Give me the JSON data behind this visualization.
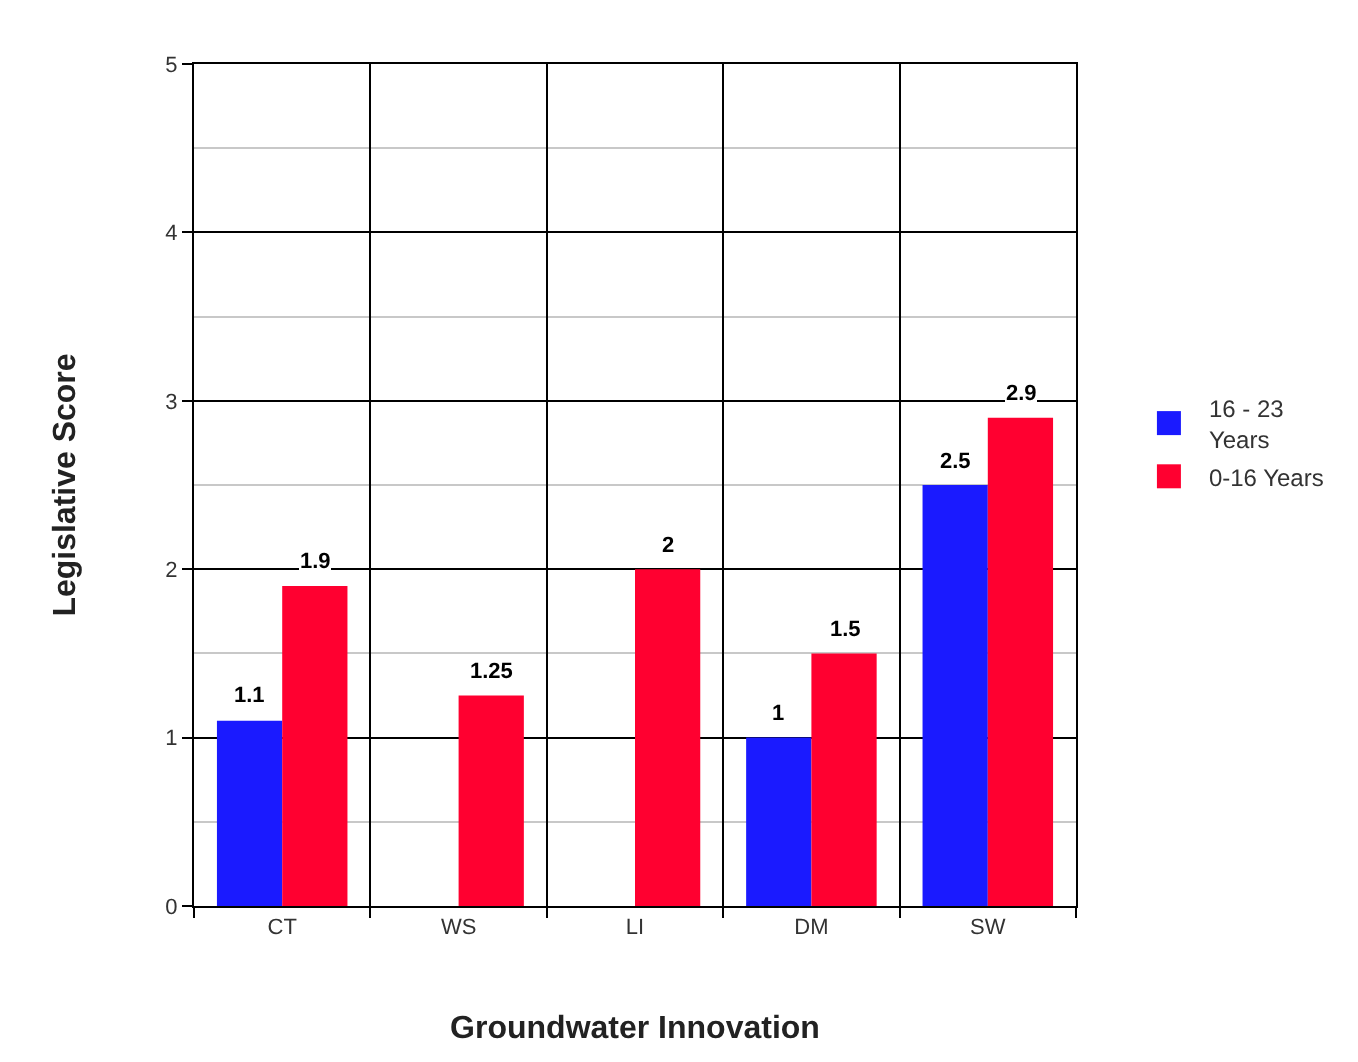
{
  "chart_data": {
    "type": "bar",
    "xlabel": "Groundwater Innovation",
    "ylabel": "Legislative Score",
    "categories": [
      "CT",
      "WS",
      "LI",
      "DM",
      "SW"
    ],
    "series": [
      {
        "name": "16 - 23 Years",
        "color": "#1a1aff",
        "values": [
          1.1,
          null,
          null,
          1,
          2.5
        ]
      },
      {
        "name": "0-16 Years",
        "color": "#ff0030",
        "values": [
          1.9,
          1.25,
          2,
          1.5,
          2.9
        ]
      }
    ],
    "ylim": [
      0,
      5
    ],
    "yticks": [
      0,
      1,
      2,
      3,
      4,
      5
    ],
    "grid": true,
    "legend": "right",
    "data_labels": true
  }
}
